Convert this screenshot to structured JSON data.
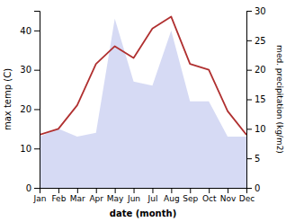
{
  "chart_data": {
    "type": "line",
    "categories": [
      "Jan",
      "Feb",
      "Mar",
      "Apr",
      "May",
      "Jun",
      "Jul",
      "Aug",
      "Sep",
      "Oct",
      "Nov",
      "Dec"
    ],
    "x_label": "date (month)",
    "y_label": "max temp (C)",
    "y2_label": "med. precipitation (kg/m2)",
    "ylim": [
      0,
      45
    ],
    "yticks": [
      0,
      10,
      20,
      30,
      40
    ],
    "y2lim": [
      0,
      30
    ],
    "y2ticks": [
      0,
      5,
      10,
      15,
      20,
      25,
      30
    ],
    "series": [
      {
        "type": "area",
        "color": "#c5caf0",
        "values": [
          13,
          15,
          13,
          14,
          43,
          27,
          26,
          40,
          22,
          22,
          13,
          13
        ]
      },
      {
        "type": "line",
        "axis": "y2",
        "color": "#b03030",
        "values": [
          9,
          10,
          14,
          21,
          24,
          22,
          27,
          29,
          21,
          20,
          13,
          9
        ]
      }
    ]
  }
}
